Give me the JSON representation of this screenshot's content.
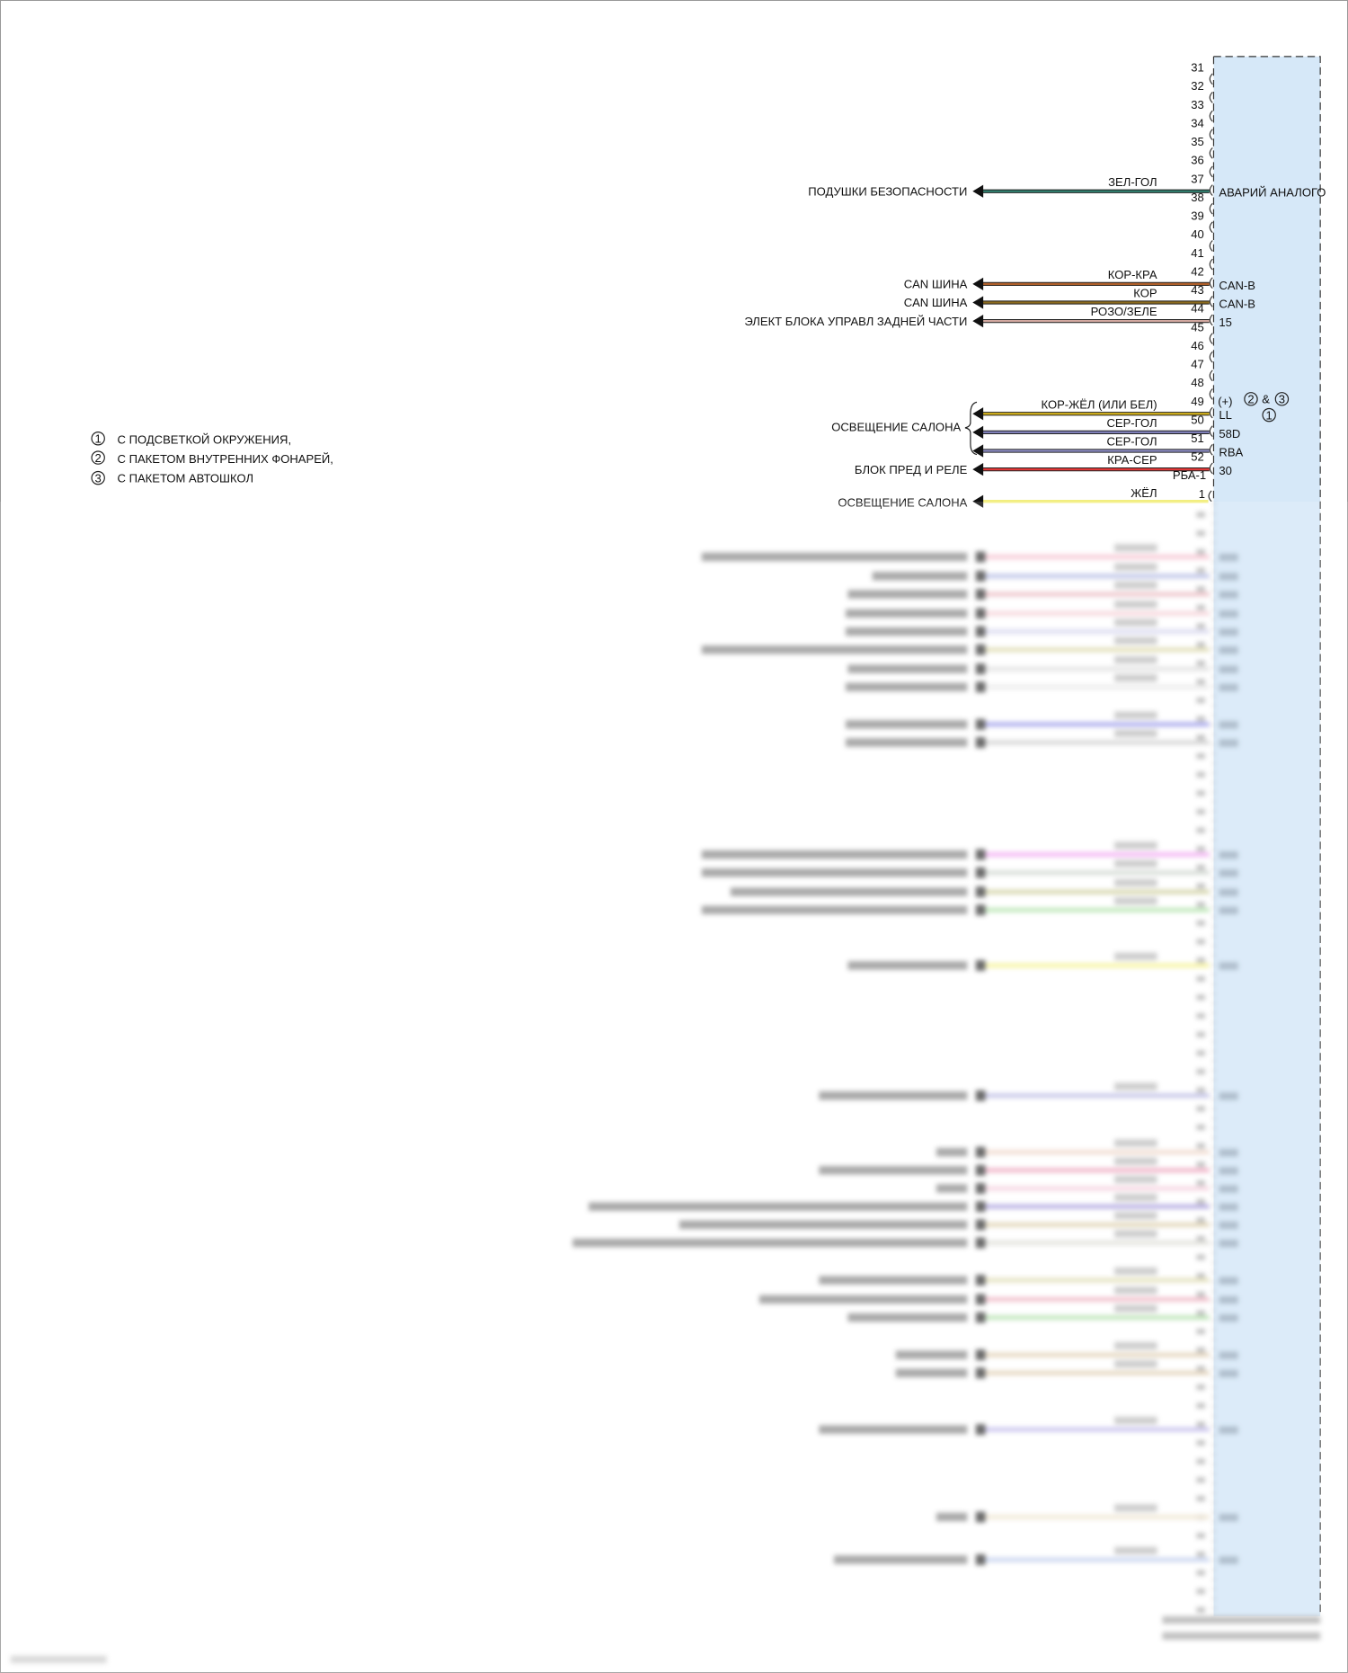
{
  "legend": [
    {
      "num": "1",
      "text": "С ПОДСВЕТКОЙ ОКРУЖЕНИЯ,"
    },
    {
      "num": "2",
      "text": "С ПАКЕТОМ ВНУТРЕННИХ ФОНАРЕЙ,"
    },
    {
      "num": "3",
      "text": "С ПАКЕТОМ АВТОШКОЛ"
    }
  ],
  "connector": {
    "fill_color": "#d6e8f8",
    "pins": [
      "31",
      "32",
      "33",
      "34",
      "35",
      "36",
      "37",
      "38",
      "39",
      "40",
      "41",
      "42",
      "43",
      "44",
      "45",
      "46",
      "47",
      "48",
      "49",
      "50",
      "51",
      "52"
    ],
    "option_note": {
      "plus": "(+)",
      "c2": "2",
      "amp": "&",
      "c3": "3",
      "c1": "1"
    },
    "sub_connector_label": "РБА-1",
    "next_pin": "1"
  },
  "wires": [
    {
      "pin": "37",
      "color_code": "ЗЕЛ-ГОЛ",
      "color": "#2f7a6a",
      "dest": "ПОДУШКИ БЕЗОПАСНОСТИ",
      "signal": "АВАРИЙ АНАЛОГО"
    },
    {
      "pin": "42",
      "color_code": "КОР-КРА",
      "color": "#b0602a",
      "dest": "CAN ШИНА",
      "signal": "CAN-B"
    },
    {
      "pin": "43",
      "color_code": "КОР",
      "color": "#8a6a1e",
      "dest": "CAN ШИНА",
      "signal": "CAN-B"
    },
    {
      "pin": "44",
      "color_code": "РОЗО/ЗЕЛЕ",
      "color": "#d2a8a0",
      "dest": "ЭЛЕКТ БЛОКА УПРАВЛ ЗАДНЕЙ ЧАСТИ",
      "signal": "15"
    },
    {
      "pin": "49",
      "color_code": "КОР-ЖЁЛ   (ИЛИ БЕЛ)",
      "color": "#d6b41c",
      "dest": "",
      "signal": "LL"
    },
    {
      "pin": "50",
      "color_code": "СЕР-ГОЛ",
      "color": "#7f7fb8",
      "dest": "",
      "signal": "58D"
    },
    {
      "pin": "51",
      "color_code": "СЕР-ГОЛ",
      "color": "#8c8cc4",
      "dest": "",
      "signal": "RBA"
    },
    {
      "pin": "52",
      "color_code": "КРА-СЕР",
      "color": "#e03838",
      "dest": "БЛОК ПРЕД И РЕЛЕ",
      "signal": "30"
    }
  ],
  "group_dest": "ОСВЕЩЕНИЕ САЛОНА",
  "cut_wire": {
    "pin": "1",
    "color_code": "ЖЁЛ",
    "color": "#f2ee80",
    "dest": "ОСВЕЩЕНИЕ САЛОНА"
  },
  "blurred_wire_colors": [
    "#f6b8c8",
    "#a8b0e0",
    "#e8b0b8",
    "#f4c8d0",
    "#d0d0ec",
    "#d8d4a0",
    "#d8d8d8",
    "#e6e6e6",
    "#8e8ee8",
    "#c8c8c8",
    "#f09cf0",
    "#c8d0c8",
    "#c8c890",
    "#a8e0a0",
    "#f4f080",
    "#b0b0e0",
    "#ecd0c0",
    "#ec98b4",
    "#f4c8d8",
    "#9c90d8",
    "#d8c8a0",
    "#d8d8d0",
    "#dcd8a8",
    "#eca8b8",
    "#a8dca0",
    "#dcc8a8",
    "#dcc8a8",
    "#b8b0e8",
    "#ece0c8",
    "#b8c8ec"
  ]
}
